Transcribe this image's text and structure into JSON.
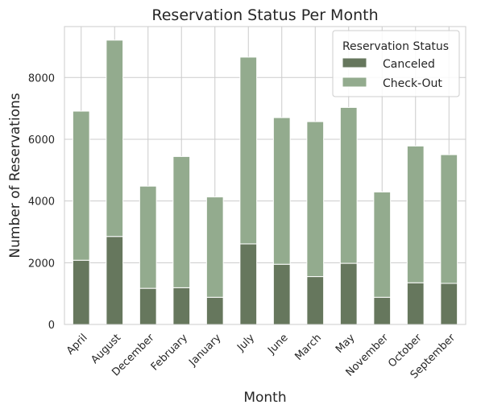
{
  "chart_data": {
    "type": "bar",
    "stacked": true,
    "title": "Reservation Status Per Month",
    "xlabel": "Month",
    "ylabel": "Number of Reservations",
    "categories": [
      "April",
      "August",
      "December",
      "February",
      "January",
      "July",
      "June",
      "March",
      "May",
      "November",
      "October",
      "September"
    ],
    "series": [
      {
        "name": "Canceled",
        "color": "#66775d",
        "values": [
          2080,
          2850,
          1170,
          1190,
          880,
          2610,
          1950,
          1550,
          1980,
          880,
          1350,
          1330
        ]
      },
      {
        "name": "Check-Out",
        "color": "#93ab8e",
        "values": [
          4830,
          6360,
          3310,
          4250,
          3250,
          6050,
          4750,
          5020,
          5050,
          3410,
          4430,
          4170
        ]
      }
    ],
    "yticks": [
      0,
      2000,
      4000,
      6000,
      8000
    ],
    "ylim": [
      0,
      9650
    ],
    "grid": true,
    "legend": {
      "title": "Reservation Status",
      "position": "top-right"
    }
  }
}
